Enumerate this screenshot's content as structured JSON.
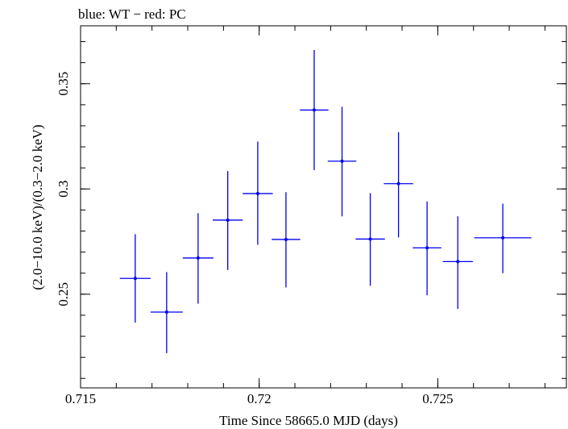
{
  "chart_data": {
    "type": "scatter",
    "title": "blue: WT − red: PC",
    "xlabel": "Time Since 58665.0 MJD (days)",
    "ylabel": "(2.0−10.0 keV)/(0.3−2.0 keV)",
    "xlim": [
      0.715,
      0.7286
    ],
    "ylim": [
      0.2055,
      0.3775
    ],
    "x_ticks": [
      {
        "value": 0.715,
        "label": "0.715"
      },
      {
        "value": 0.72,
        "label": "0.72"
      },
      {
        "value": 0.725,
        "label": "0.725"
      }
    ],
    "y_ticks": [
      {
        "value": 0.25,
        "label": "0.25"
      },
      {
        "value": 0.3,
        "label": "0.3"
      },
      {
        "value": 0.35,
        "label": "0.35"
      }
    ],
    "x_minor_step": 0.001,
    "y_minor_step": 0.01,
    "grid": false,
    "series": [
      {
        "color": "#0000ee",
        "points": [
          {
            "x": 0.71653,
            "y": 0.2575,
            "xerr": 0.00043,
            "ylo": 0.2365,
            "yhi": 0.2785
          },
          {
            "x": 0.71741,
            "y": 0.2415,
            "xerr": 0.00045,
            "ylo": 0.222,
            "yhi": 0.2605
          },
          {
            "x": 0.71829,
            "y": 0.2672,
            "xerr": 0.00043,
            "ylo": 0.2455,
            "yhi": 0.2885
          },
          {
            "x": 0.71912,
            "y": 0.2852,
            "xerr": 0.00042,
            "ylo": 0.2615,
            "yhi": 0.3085
          },
          {
            "x": 0.71996,
            "y": 0.2978,
            "xerr": 0.00042,
            "ylo": 0.2735,
            "yhi": 0.3225
          },
          {
            "x": 0.72075,
            "y": 0.276,
            "xerr": 0.0004,
            "ylo": 0.2532,
            "yhi": 0.2985
          },
          {
            "x": 0.72154,
            "y": 0.3375,
            "xerr": 0.0004,
            "ylo": 0.309,
            "yhi": 0.366
          },
          {
            "x": 0.72232,
            "y": 0.3132,
            "xerr": 0.0004,
            "ylo": 0.287,
            "yhi": 0.339
          },
          {
            "x": 0.72311,
            "y": 0.2762,
            "xerr": 0.00041,
            "ylo": 0.254,
            "yhi": 0.298
          },
          {
            "x": 0.7239,
            "y": 0.3025,
            "xerr": 0.00041,
            "ylo": 0.277,
            "yhi": 0.327
          },
          {
            "x": 0.7247,
            "y": 0.272,
            "xerr": 0.0004,
            "ylo": 0.2495,
            "yhi": 0.294
          },
          {
            "x": 0.72556,
            "y": 0.2655,
            "xerr": 0.00042,
            "ylo": 0.243,
            "yhi": 0.287
          },
          {
            "x": 0.72682,
            "y": 0.2768,
            "xerr": 0.0008,
            "ylo": 0.26,
            "yhi": 0.293
          }
        ]
      }
    ]
  }
}
